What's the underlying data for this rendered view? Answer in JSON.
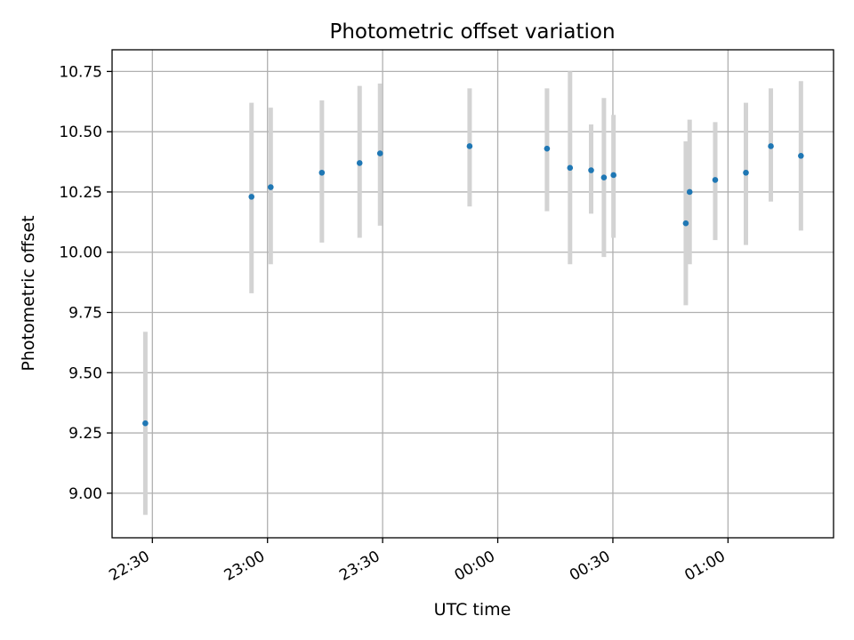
{
  "chart_data": {
    "type": "scatter",
    "title": "Photometric offset variation",
    "xlabel": "UTC time",
    "ylabel": "Photometric offset",
    "x_axis_type": "time",
    "xlim": [
      "22:19:30",
      "01:27:30"
    ],
    "ylim": [
      8.815,
      10.84
    ],
    "grid": true,
    "xticks": [
      {
        "time": "22:30",
        "label": "22:30"
      },
      {
        "time": "23:00",
        "label": "23:00"
      },
      {
        "time": "23:30",
        "label": "23:30"
      },
      {
        "time": "00:00",
        "label": "00:00"
      },
      {
        "time": "00:30",
        "label": "00:30"
      },
      {
        "time": "01:00",
        "label": "01:00"
      }
    ],
    "yticks": [
      9.0,
      9.25,
      9.5,
      9.75,
      10.0,
      10.25,
      10.5,
      10.75
    ],
    "ytick_labels": [
      "9.00",
      "9.25",
      "9.50",
      "9.75",
      "10.00",
      "10.25",
      "10.50",
      "10.75"
    ],
    "point_color": "#1f77b4",
    "errorbar_color": "#d3d3d3",
    "points": [
      {
        "time": "22:28:10",
        "y": 9.29,
        "low": 8.91,
        "high": 9.67
      },
      {
        "time": "22:55:50",
        "y": 10.23,
        "low": 9.83,
        "high": 10.62
      },
      {
        "time": "23:00:50",
        "y": 10.27,
        "low": 9.95,
        "high": 10.6
      },
      {
        "time": "23:14:10",
        "y": 10.33,
        "low": 10.04,
        "high": 10.63
      },
      {
        "time": "23:24:00",
        "y": 10.37,
        "low": 10.06,
        "high": 10.69
      },
      {
        "time": "23:29:20",
        "y": 10.41,
        "low": 10.11,
        "high": 10.7
      },
      {
        "time": "23:52:40",
        "y": 10.44,
        "low": 10.19,
        "high": 10.68
      },
      {
        "time": "00:12:50",
        "y": 10.43,
        "low": 10.17,
        "high": 10.68
      },
      {
        "time": "00:18:50",
        "y": 10.35,
        "low": 9.95,
        "high": 10.75
      },
      {
        "time": "00:24:20",
        "y": 10.34,
        "low": 10.16,
        "high": 10.53
      },
      {
        "time": "00:27:40",
        "y": 10.31,
        "low": 9.98,
        "high": 10.64
      },
      {
        "time": "00:30:10",
        "y": 10.32,
        "low": 10.06,
        "high": 10.57
      },
      {
        "time": "00:49:00",
        "y": 10.12,
        "low": 9.78,
        "high": 10.46
      },
      {
        "time": "00:50:00",
        "y": 10.25,
        "low": 9.95,
        "high": 10.55
      },
      {
        "time": "00:56:40",
        "y": 10.3,
        "low": 10.05,
        "high": 10.54
      },
      {
        "time": "01:04:40",
        "y": 10.33,
        "low": 10.03,
        "high": 10.62
      },
      {
        "time": "01:11:10",
        "y": 10.44,
        "low": 10.21,
        "high": 10.68
      },
      {
        "time": "01:19:00",
        "y": 10.4,
        "low": 10.09,
        "high": 10.71
      }
    ]
  }
}
